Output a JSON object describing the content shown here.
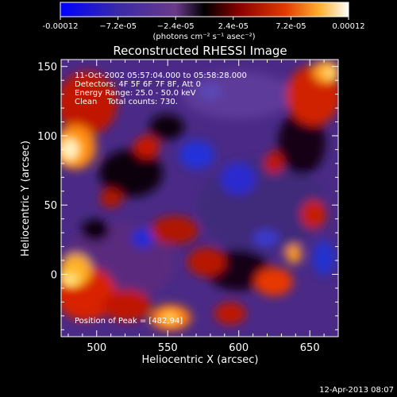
{
  "chart_data": {
    "type": "heatmap",
    "title": "Reconstructed RHESSI Image",
    "xlabel": "Heliocentric X (arcsec)",
    "ylabel": "Heliocentric Y (arcsec)",
    "xlim": [
      475,
      670
    ],
    "ylim": [
      -45,
      155
    ],
    "x_ticks": [
      500,
      550,
      600,
      650
    ],
    "y_ticks": [
      0,
      50,
      100,
      150
    ],
    "colorbar": {
      "min": -0.00012,
      "max": 0.00012,
      "tick_labels": [
        "-0.00012",
        "−7.2e-05",
        "−2.4e-05",
        "2.4e-05",
        "7.2e-05",
        "0.00012"
      ],
      "unit_label": "(photons cm⁻² s⁻¹ asec⁻²)"
    },
    "annotations": [
      "11-Oct-2002 05:57:04.000 to 05:58:28.000",
      "Detectors: 4F 5F 6F 7F 8F, Att 0",
      "Energy Range: 25.0 - 50.0 keV",
      "Clean    Total counts: 730."
    ],
    "peak_annotation": "Position of Peak = [482,94]",
    "grid": false,
    "peak_position": [
      482,
      94
    ]
  },
  "footer": {
    "timestamp": "12-Apr-2013 08:07"
  },
  "colors": {
    "background": "#000000",
    "axes": "#ffffff",
    "colormap": [
      "#0000ff",
      "#4a2ea8",
      "#7a4aa0",
      "#000000",
      "#8a0000",
      "#e03000",
      "#ff8c1a",
      "#ffffff"
    ]
  }
}
